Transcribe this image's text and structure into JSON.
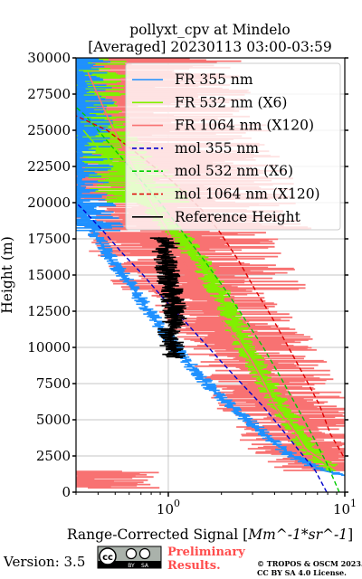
{
  "chart_data": {
    "type": "line",
    "title": [
      "pollyxt_cpv at Mindelo",
      "[Averaged] 20230113 03:00-03:59"
    ],
    "xlabel_prefix": "Range-Corrected Signal [",
    "xlabel_unit": "Mm^-1*sr^-1",
    "xlabel_suffix": "]",
    "ylabel": "Height (m)",
    "xscale": "log",
    "xlim": [
      0.3,
      10
    ],
    "ylim": [
      0,
      30000
    ],
    "grid": true,
    "legend_position": "upper-right",
    "x_ticks": [
      {
        "value": 1,
        "base": "10",
        "exp": "0"
      },
      {
        "value": 10,
        "base": "10",
        "exp": "1"
      }
    ],
    "y_ticks": [
      "0",
      "2500",
      "5000",
      "7500",
      "10000",
      "12500",
      "15000",
      "17500",
      "20000",
      "22500",
      "25000",
      "27500",
      "30000"
    ],
    "series": [
      {
        "name": "FR 355 nm",
        "color": "#1e90ff",
        "style": "solid",
        "points": [
          [
            11.5,
            1000
          ],
          [
            7.5,
            1500
          ],
          [
            5,
            2500
          ],
          [
            3.5,
            4000
          ],
          [
            2.5,
            5500
          ],
          [
            1.8,
            7000
          ],
          [
            1.4,
            8500
          ],
          [
            1.1,
            10000
          ],
          [
            0.9,
            11500
          ],
          [
            0.72,
            13000
          ],
          [
            0.6,
            14500
          ],
          [
            0.48,
            16000
          ],
          [
            0.4,
            17500
          ],
          [
            0.34,
            19000
          ],
          [
            0.3,
            20500
          ]
        ]
      },
      {
        "name": "FR 532 nm (X6)",
        "color": "#80f000",
        "style": "solid",
        "points": [
          [
            8.5,
            1500
          ],
          [
            6.8,
            2500
          ],
          [
            5.8,
            3500
          ],
          [
            4.9,
            5000
          ],
          [
            4.3,
            6000
          ],
          [
            3.6,
            7500
          ],
          [
            3.1,
            9000
          ],
          [
            2.7,
            10000
          ],
          [
            2.4,
            11500
          ],
          [
            2.1,
            13000
          ],
          [
            1.8,
            14500
          ],
          [
            1.5,
            16000
          ],
          [
            1.2,
            17500
          ],
          [
            0.9,
            19000
          ],
          [
            0.72,
            20500
          ],
          [
            0.55,
            22000
          ],
          [
            0.42,
            23500
          ],
          [
            0.33,
            25000
          ]
        ]
      },
      {
        "name": "FR 1064 nm (X120)",
        "color": "#f87272",
        "style": "solid",
        "points": [
          [
            9,
            1500
          ],
          [
            6,
            3000
          ],
          [
            5,
            4500
          ],
          [
            4,
            6000
          ],
          [
            3.5,
            7500
          ],
          [
            3,
            9000
          ],
          [
            2.5,
            10500
          ],
          [
            2,
            12000
          ],
          [
            1.6,
            14000
          ],
          [
            1.2,
            16000
          ],
          [
            1,
            18000
          ],
          [
            0.8,
            20000
          ],
          [
            0.6,
            23000
          ],
          [
            0.45,
            26000
          ],
          [
            0.35,
            29000
          ]
        ]
      },
      {
        "name": "mol 355 nm",
        "color": "#0000cc",
        "style": "dashed",
        "points": [
          [
            7.9,
            0
          ],
          [
            6.8,
            1500
          ],
          [
            5.4,
            3000
          ],
          [
            4.3,
            4500
          ],
          [
            3.4,
            6000
          ],
          [
            2.6,
            7500
          ],
          [
            2,
            9000
          ],
          [
            1.55,
            10500
          ],
          [
            1.2,
            12000
          ],
          [
            0.92,
            13500
          ],
          [
            0.72,
            15000
          ],
          [
            0.55,
            16500
          ],
          [
            0.43,
            18000
          ],
          [
            0.33,
            19500
          ],
          [
            0.3,
            20000
          ]
        ]
      },
      {
        "name": "mol 532 nm (X6)",
        "color": "#00cc00",
        "style": "dashed",
        "points": [
          [
            9.3,
            0
          ],
          [
            7.9,
            2000
          ],
          [
            6.5,
            4000
          ],
          [
            5.3,
            6000
          ],
          [
            4.3,
            8000
          ],
          [
            3.45,
            10000
          ],
          [
            2.7,
            12000
          ],
          [
            2.1,
            14000
          ],
          [
            1.6,
            16000
          ],
          [
            1.2,
            18000
          ],
          [
            0.9,
            20000
          ],
          [
            0.65,
            22000
          ],
          [
            0.47,
            24000
          ],
          [
            0.34,
            26000
          ],
          [
            0.3,
            26600
          ]
        ]
      },
      {
        "name": "mol 1064 nm (X120)",
        "color": "#dd0000",
        "style": "dashed",
        "points": [
          [
            9.8,
            2500
          ],
          [
            8.3,
            4000
          ],
          [
            7.2,
            6000
          ],
          [
            5.9,
            8000
          ],
          [
            4.8,
            10000
          ],
          [
            3.9,
            12000
          ],
          [
            3.1,
            14000
          ],
          [
            2.5,
            16000
          ],
          [
            1.95,
            18000
          ],
          [
            1.55,
            19500
          ],
          [
            1.05,
            21500
          ],
          [
            0.65,
            23500
          ],
          [
            0.45,
            25000
          ],
          [
            0.3,
            26000
          ]
        ]
      },
      {
        "name": "Reference Height",
        "color": "#000000",
        "style": "solid",
        "points": [
          [
            0.88,
            17600
          ],
          [
            1.0,
            17200
          ],
          [
            0.95,
            16600
          ],
          [
            1.1,
            12000
          ],
          [
            1.0,
            11000
          ],
          [
            1.1,
            9300
          ]
        ]
      }
    ]
  },
  "footer": {
    "version": "Version: 3.5",
    "license_badge": [
      "cc",
      "BY",
      "SA"
    ],
    "preliminary": [
      "Preliminary",
      "Results."
    ],
    "copyright": [
      "© TROPOS & OSCM 2023.",
      "CC BY SA 4.0 License."
    ]
  }
}
